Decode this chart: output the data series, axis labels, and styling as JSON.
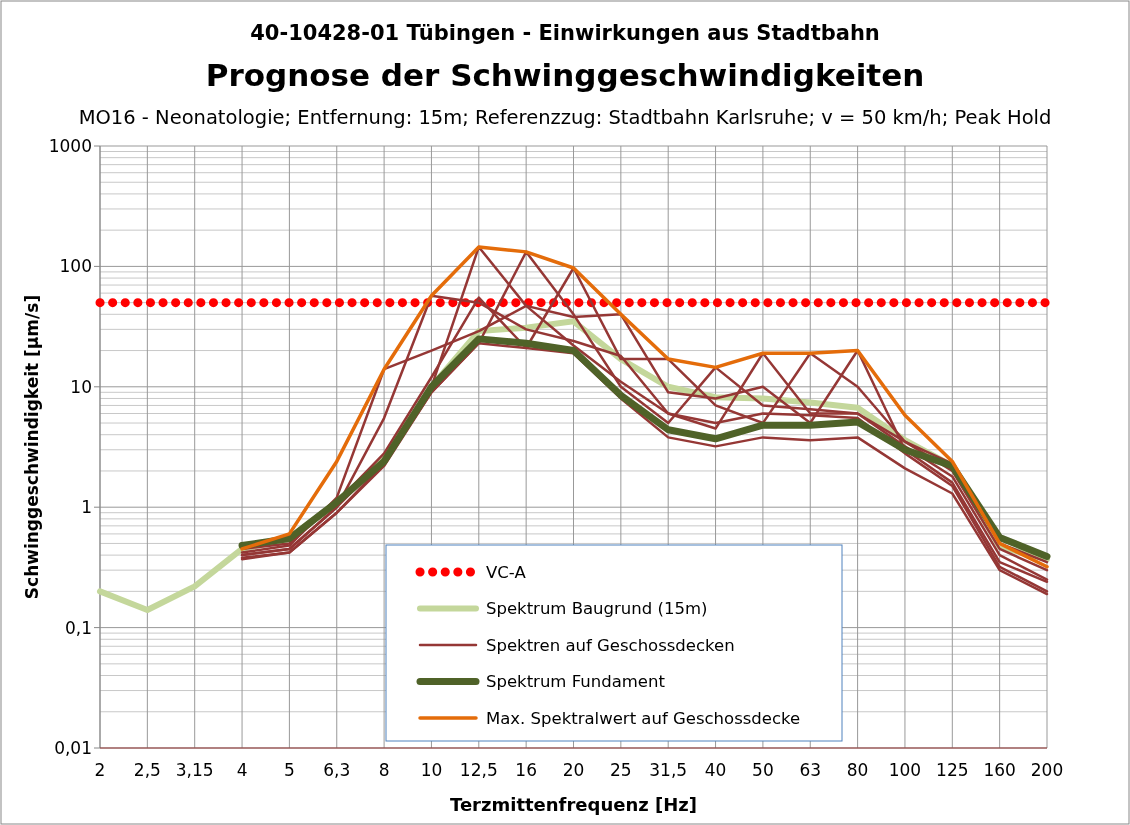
{
  "chart_data": {
    "type": "line",
    "title": "40-10428-01 Tübingen - Einwirkungen aus Stadtbahn",
    "subtitle": "Prognose der Schwinggeschwindigkeiten",
    "annotations": [
      "MO16 - Neonatologie; Entfernung: 15m; Referenzzug: Stadtbahn Karlsruhe; v = 50 km/h; Peak Hold"
    ],
    "xlabel": "Terzmittenfrequenz [Hz]",
    "ylabel": "Schwinggeschwindigkeit [µm/s]",
    "categories": [
      "2",
      "2,5",
      "3,15",
      "4",
      "5",
      "6,3",
      "8",
      "10",
      "12,5",
      "16",
      "20",
      "25",
      "31,5",
      "40",
      "50",
      "63",
      "80",
      "100",
      "125",
      "160",
      "200"
    ],
    "log": true,
    "ylim": [
      0.01,
      1000
    ],
    "yticks": [
      {
        "value": 0.01,
        "label": "0,01"
      },
      {
        "value": 0.1,
        "label": "0,1"
      },
      1,
      10,
      100,
      1000
    ],
    "grid": true,
    "legend": "bottom",
    "series": [
      {
        "name": "VC-A",
        "color": "#ff0000",
        "line_style": "dotted",
        "values": [
          50,
          50,
          50,
          50,
          50,
          50,
          50,
          50,
          50,
          50,
          50,
          50,
          50,
          50,
          50,
          50,
          50,
          50,
          50,
          50,
          50
        ]
      },
      {
        "name": "Spektrum Baugrund (15m)",
        "color": "#c4d79b",
        "values": [
          0.2,
          0.14,
          0.22,
          0.45,
          0.55,
          1.1,
          2.5,
          10,
          29,
          31,
          35,
          17,
          10,
          8.2,
          8,
          7.4,
          6.7,
          3.6,
          2.2,
          0.47,
          0.37
        ]
      },
      {
        "name": "Spektren auf Geschossdecken",
        "color": "#953735",
        "values": [
          null,
          null,
          null,
          0.4,
          0.45,
          1.0,
          2.5,
          10,
          145,
          47,
          22,
          11,
          6,
          4.5,
          19,
          6,
          6,
          3.5,
          2.0,
          0.45,
          0.3
        ]
      },
      {
        "color": "#953735",
        "values": [
          null,
          null,
          null,
          0.38,
          0.42,
          0.9,
          2.3,
          9,
          23,
          132,
          40,
          10,
          5,
          14.5,
          7,
          6.5,
          6,
          3.2,
          1.8,
          0.4,
          0.25
        ]
      },
      {
        "color": "#953735",
        "values": [
          null,
          null,
          null,
          0.45,
          0.5,
          1.1,
          2.8,
          12,
          55,
          21,
          97,
          17,
          17,
          7,
          5,
          19,
          10,
          3.5,
          2.3,
          0.5,
          0.35
        ]
      },
      {
        "color": "#953735",
        "values": [
          null,
          null,
          null,
          0.42,
          0.48,
          1.2,
          14,
          20,
          29,
          47,
          38,
          40,
          9,
          8,
          10,
          5,
          20,
          3.0,
          1.6,
          0.35,
          0.24
        ]
      },
      {
        "color": "#953735",
        "values": [
          null,
          null,
          null,
          0.4,
          0.45,
          1.0,
          5.5,
          57,
          50,
          30,
          24,
          18,
          6,
          5,
          6,
          5.8,
          5.5,
          2.8,
          1.5,
          0.32,
          0.2
        ]
      },
      {
        "color": "#953735",
        "values": [
          null,
          null,
          null,
          0.37,
          0.42,
          0.9,
          2.2,
          9,
          23,
          21,
          19,
          8,
          3.8,
          3.2,
          3.8,
          3.6,
          3.8,
          2.1,
          1.3,
          0.3,
          0.19
        ]
      },
      {
        "name": "Spektrum Fundament",
        "color": "#4f6228",
        "values": [
          null,
          null,
          null,
          0.48,
          0.55,
          1.1,
          2.4,
          10,
          25,
          23,
          20,
          8.5,
          4.4,
          3.7,
          4.8,
          4.8,
          5.1,
          3.0,
          2.2,
          0.56,
          0.39
        ]
      },
      {
        "name": "Max. Spektralwert auf Geschossdecke",
        "color": "#e46c0a",
        "values": [
          null,
          null,
          null,
          0.45,
          0.6,
          2.4,
          14,
          57,
          145,
          132,
          97,
          40,
          17,
          14.5,
          19,
          19,
          20,
          5.8,
          2.4,
          0.5,
          0.32
        ]
      }
    ]
  }
}
